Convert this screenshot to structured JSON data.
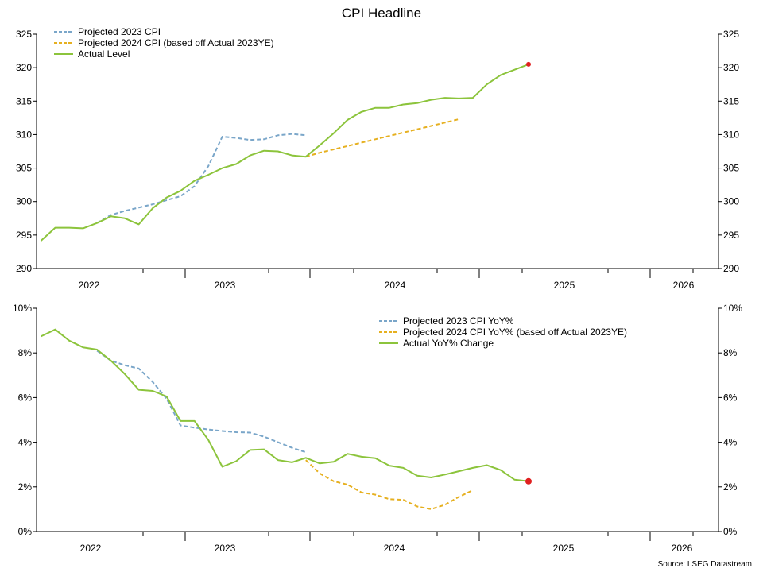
{
  "title": "CPI Headline",
  "source": "Source: LSEG Datastream",
  "colors": {
    "projected_2023": "#7aa6c9",
    "projected_2024": "#e6b020",
    "actual": "#8cc43c",
    "marker": "#e02020",
    "axis": "#000000"
  },
  "chart_data": [
    {
      "type": "line",
      "title": "CPI Headline",
      "x_axis": {
        "type": "date",
        "range": [
          "2021-09",
          "2026-03"
        ],
        "tick_labels": [
          "2022",
          "2023",
          "2024",
          "2025",
          "2026"
        ]
      },
      "y_axis": {
        "range": [
          290,
          325
        ],
        "tick_labels": [
          "290",
          "295",
          "300",
          "305",
          "310",
          "315",
          "320",
          "325"
        ],
        "mirrored_right": true
      },
      "legend_position": "top-left",
      "grid": false,
      "series": [
        {
          "name": "Projected 2023 CPI",
          "style": "dashed",
          "color": "#7aa6c9",
          "points": [
            [
              "2022-01",
              296.8
            ],
            [
              "2022-02",
              298.0
            ],
            [
              "2022-03",
              298.6
            ],
            [
              "2022-04",
              299.1
            ],
            [
              "2022-05",
              299.6
            ],
            [
              "2022-06",
              300.2
            ],
            [
              "2022-07",
              300.8
            ],
            [
              "2022-08",
              302.3
            ],
            [
              "2022-09",
              305.3
            ],
            [
              "2022-10",
              309.7
            ],
            [
              "2022-11",
              309.5
            ],
            [
              "2022-12",
              309.2
            ],
            [
              "2023-01",
              309.3
            ],
            [
              "2023-02",
              309.9
            ],
            [
              "2023-03",
              310.1
            ],
            [
              "2023-04",
              309.9
            ]
          ]
        },
        {
          "name": "Projected 2024 CPI (based off Actual 2023YE)",
          "style": "dashed",
          "color": "#e6b020",
          "points": [
            [
              "2023-04",
              306.7
            ],
            [
              "2023-05",
              307.3
            ],
            [
              "2023-06",
              307.8
            ],
            [
              "2023-07",
              308.3
            ],
            [
              "2023-08",
              308.8
            ],
            [
              "2023-09",
              309.3
            ],
            [
              "2023-10",
              309.8
            ],
            [
              "2023-11",
              310.3
            ],
            [
              "2023-12",
              310.8
            ],
            [
              "2024-01",
              311.3
            ],
            [
              "2024-02",
              311.8
            ],
            [
              "2024-03",
              312.3
            ]
          ]
        },
        {
          "name": "Actual Level",
          "style": "solid",
          "color": "#8cc43c",
          "points": [
            [
              "2021-09",
              294.2
            ],
            [
              "2021-10",
              296.1
            ],
            [
              "2021-11",
              296.1
            ],
            [
              "2021-12",
              296.0
            ],
            [
              "2022-01",
              296.8
            ],
            [
              "2022-02",
              297.8
            ],
            [
              "2022-03",
              297.5
            ],
            [
              "2022-04",
              296.6
            ],
            [
              "2022-05",
              299.0
            ],
            [
              "2022-06",
              300.6
            ],
            [
              "2022-07",
              301.6
            ],
            [
              "2022-08",
              303.1
            ],
            [
              "2022-09",
              304.0
            ],
            [
              "2022-10",
              305.0
            ],
            [
              "2022-11",
              305.6
            ],
            [
              "2022-12",
              306.9
            ],
            [
              "2023-01",
              307.6
            ],
            [
              "2023-02",
              307.5
            ],
            [
              "2023-03",
              306.9
            ],
            [
              "2023-04",
              306.7
            ],
            [
              "2023-05",
              308.4
            ],
            [
              "2023-06",
              310.2
            ],
            [
              "2023-07",
              312.2
            ],
            [
              "2023-08",
              313.4
            ],
            [
              "2023-09",
              314.0
            ],
            [
              "2023-10",
              314.0
            ],
            [
              "2023-11",
              314.5
            ],
            [
              "2023-12",
              314.7
            ],
            [
              "2024-01",
              315.2
            ],
            [
              "2024-02",
              315.5
            ],
            [
              "2024-03",
              315.4
            ],
            [
              "2024-04",
              315.5
            ],
            [
              "2024-05",
              317.5
            ],
            [
              "2024-06",
              318.9
            ],
            [
              "2024-07",
              319.7
            ],
            [
              "2024-08",
              320.5
            ]
          ]
        }
      ],
      "end_marker": {
        "x": "2024-08",
        "y": 320.5
      }
    },
    {
      "type": "line",
      "x_axis": {
        "type": "date",
        "range": [
          "2021-09",
          "2026-03"
        ],
        "tick_labels": [
          "2022",
          "2023",
          "2024",
          "2025",
          "2026"
        ]
      },
      "y_axis": {
        "range": [
          0,
          10
        ],
        "unit": "%",
        "tick_labels": [
          "0%",
          "2%",
          "4%",
          "6%",
          "8%",
          "10%"
        ],
        "mirrored_right": true
      },
      "legend_position": "top-right",
      "grid": false,
      "series": [
        {
          "name": "Projected 2023 CPI YoY%",
          "style": "dashed",
          "color": "#7aa6c9",
          "points": [
            [
              "2022-01",
              8.1
            ],
            [
              "2022-02",
              7.65
            ],
            [
              "2022-03",
              7.45
            ],
            [
              "2022-04",
              7.3
            ],
            [
              "2022-05",
              6.7
            ],
            [
              "2022-06",
              5.95
            ],
            [
              "2022-07",
              4.75
            ],
            [
              "2022-08",
              4.65
            ],
            [
              "2022-09",
              4.57
            ],
            [
              "2022-10",
              4.5
            ],
            [
              "2022-11",
              4.45
            ],
            [
              "2022-12",
              4.43
            ],
            [
              "2023-01",
              4.25
            ],
            [
              "2023-02",
              4.0
            ],
            [
              "2023-03",
              3.75
            ],
            [
              "2023-04",
              3.55
            ]
          ]
        },
        {
          "name": "Projected 2024 CPI YoY% (based off Actual 2023YE)",
          "style": "dashed",
          "color": "#e6b020",
          "points": [
            [
              "2023-04",
              3.2
            ],
            [
              "2023-05",
              2.6
            ],
            [
              "2023-06",
              2.25
            ],
            [
              "2023-07",
              2.1
            ],
            [
              "2023-08",
              1.75
            ],
            [
              "2023-09",
              1.65
            ],
            [
              "2023-10",
              1.45
            ],
            [
              "2023-11",
              1.42
            ],
            [
              "2023-12",
              1.12
            ],
            [
              "2024-01",
              1.0
            ],
            [
              "2024-02",
              1.2
            ],
            [
              "2024-03",
              1.55
            ],
            [
              "2024-04",
              1.85
            ]
          ]
        },
        {
          "name": "Actual YoY% Change",
          "style": "solid",
          "color": "#8cc43c",
          "points": [
            [
              "2021-09",
              8.75
            ],
            [
              "2021-10",
              9.05
            ],
            [
              "2021-11",
              8.55
            ],
            [
              "2021-12",
              8.25
            ],
            [
              "2022-01",
              8.15
            ],
            [
              "2022-02",
              7.65
            ],
            [
              "2022-03",
              7.05
            ],
            [
              "2022-04",
              6.35
            ],
            [
              "2022-05",
              6.3
            ],
            [
              "2022-06",
              6.05
            ],
            [
              "2022-07",
              4.95
            ],
            [
              "2022-08",
              4.95
            ],
            [
              "2022-09",
              4.1
            ],
            [
              "2022-10",
              2.9
            ],
            [
              "2022-11",
              3.15
            ],
            [
              "2022-12",
              3.65
            ],
            [
              "2023-01",
              3.68
            ],
            [
              "2023-02",
              3.2
            ],
            [
              "2023-03",
              3.1
            ],
            [
              "2023-04",
              3.3
            ],
            [
              "2023-05",
              3.05
            ],
            [
              "2023-06",
              3.12
            ],
            [
              "2023-07",
              3.48
            ],
            [
              "2023-08",
              3.35
            ],
            [
              "2023-09",
              3.28
            ],
            [
              "2023-10",
              2.95
            ],
            [
              "2023-11",
              2.85
            ],
            [
              "2023-12",
              2.5
            ],
            [
              "2024-01",
              2.42
            ],
            [
              "2024-02",
              2.55
            ],
            [
              "2024-03",
              2.7
            ],
            [
              "2024-04",
              2.85
            ],
            [
              "2024-05",
              2.97
            ],
            [
              "2024-06",
              2.75
            ],
            [
              "2024-07",
              2.32
            ],
            [
              "2024-08",
              2.25
            ]
          ]
        }
      ],
      "end_marker": {
        "x": "2024-08",
        "y": 2.25
      }
    }
  ]
}
